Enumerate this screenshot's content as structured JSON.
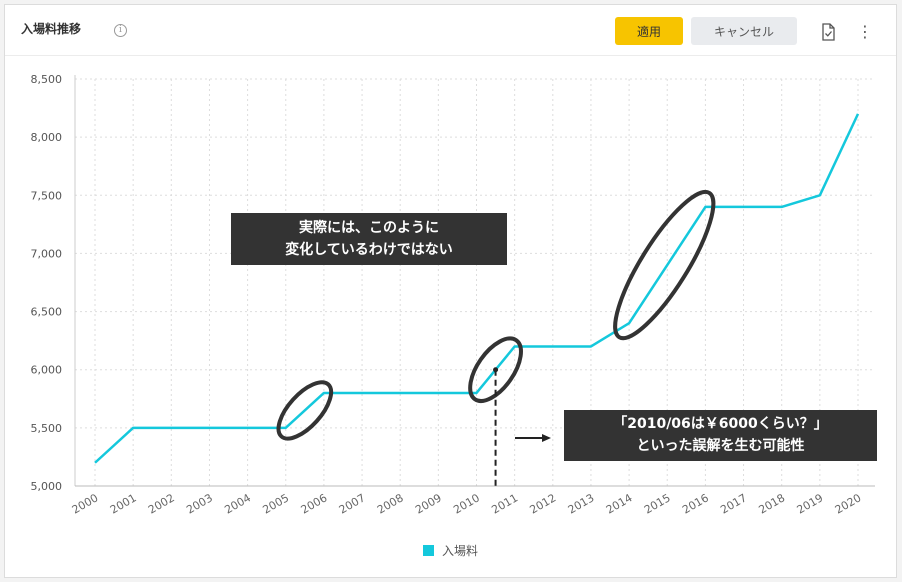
{
  "header": {
    "title": "入場料推移",
    "info_icon": "info-icon",
    "apply_label": "適用",
    "cancel_label": "キャンセル",
    "export_icon": "file-check-icon",
    "more_icon": "more-vertical-icon"
  },
  "colors": {
    "line": "#14c8dc",
    "accent_button": "#f7c400",
    "annotation_bg": "#333333",
    "ellipse": "#333333"
  },
  "chart_data": {
    "type": "line",
    "categories": [
      "2000",
      "2001",
      "2002",
      "2003",
      "2004",
      "2005",
      "2006",
      "2007",
      "2008",
      "2009",
      "2010",
      "2011",
      "2012",
      "2013",
      "2014",
      "2015",
      "2016",
      "2017",
      "2018",
      "2019",
      "2020"
    ],
    "series": [
      {
        "name": "入場料",
        "values": [
          5200,
          5500,
          5500,
          5500,
          5500,
          5500,
          5800,
          5800,
          5800,
          5800,
          5800,
          6200,
          6200,
          6200,
          6400,
          6900,
          7400,
          7400,
          7400,
          7500,
          8200
        ]
      }
    ],
    "ylim": [
      5000,
      8500
    ],
    "yticks": [
      5000,
      5500,
      6000,
      6500,
      7000,
      7500,
      8000,
      8500
    ],
    "ytick_labels": [
      "5,000",
      "5,500",
      "6,000",
      "6,500",
      "7,000",
      "7,500",
      "8,000",
      "8,500"
    ],
    "grid": true,
    "legend": "bottom-center"
  },
  "annotations": {
    "box1_lines": [
      "実際には、このように",
      "変化しているわけではない"
    ],
    "box2_lines": [
      "「2010/06は￥6000くらい？」",
      "といった誤解を生む可能性"
    ]
  }
}
